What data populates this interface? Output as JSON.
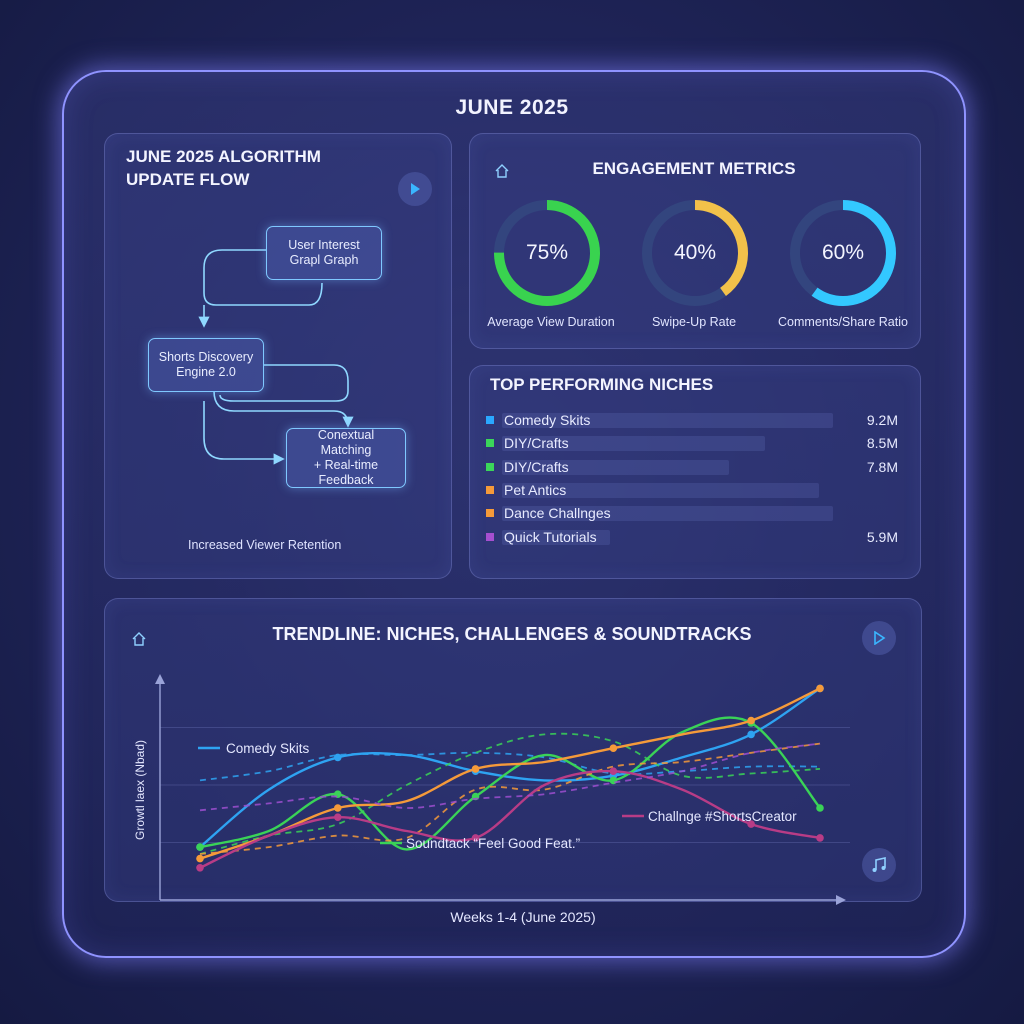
{
  "header": {
    "title": "JUNE 2025"
  },
  "flow_panel": {
    "title_line1": "JUNE 2025 ALGORITHM",
    "title_line2": "UPDATE FLOW",
    "nodes": [
      {
        "line1": "User Interest",
        "line2": "Grapl Graph"
      },
      {
        "line1": "Shorts Discovery",
        "line2": "Engine 2.0"
      },
      {
        "line1": "Conextual Matching",
        "line2": "+ Real-time",
        "line3": "Feedback"
      }
    ],
    "caption": "Increased Viewer Retention",
    "play_icon": "play-icon"
  },
  "engagement_panel": {
    "title": "ENGAGEMENT METRICS",
    "icon": "home-icon",
    "gauges": [
      {
        "value_text": "75%",
        "fraction": 0.75,
        "label": "Average View Duration",
        "color": "#39d34f"
      },
      {
        "value_text": "40%",
        "fraction": 0.4,
        "label": "Swipe-Up Rate",
        "color": "#f2c14a"
      },
      {
        "value_text": "60%",
        "fraction": 0.6,
        "label": "Comments/Share Ratio",
        "color": "#33c8ff"
      }
    ],
    "track_color": "#33457e"
  },
  "niches_panel": {
    "title": "TOP PERFORMING NICHES",
    "items": [
      {
        "name": "Comedy Skits",
        "value": "9.2M",
        "color": "#2aa8ff",
        "bar_fraction": 0.92
      },
      {
        "name": "DIY/Crafts",
        "value": "8.5M",
        "color": "#3bd65a",
        "bar_fraction": 0.73
      },
      {
        "name": "DIY/Crafts",
        "value": "7.8M",
        "color": "#3bd65a",
        "bar_fraction": 0.63
      },
      {
        "name": "Pet Antics",
        "value": "",
        "color": "#f59a3a",
        "bar_fraction": 0.88
      },
      {
        "name": "Dance Challnges",
        "value": "",
        "color": "#f59a3a",
        "bar_fraction": 0.92
      },
      {
        "name": "Quick Tutorials",
        "value": "5.9M",
        "color": "#a64fd0",
        "bar_fraction": 0.3
      }
    ]
  },
  "chart_data": {
    "type": "line",
    "title": "TRENDLINE: NICHES, CHALLENGES & SOUNDTRACKS",
    "xlabel": "Weeks 1-4 (June 2025)",
    "ylabel": "Growtl laex (Nbad)",
    "x": [
      0,
      1,
      2,
      3,
      4,
      5,
      6,
      7,
      8,
      9
    ],
    "ylim": [
      0,
      100
    ],
    "grid": true,
    "series": [
      {
        "name": "Comedy Skits",
        "color": "#2ea3f2",
        "style": "solid",
        "values": [
          23,
          48,
          62,
          63,
          56,
          52,
          54,
          62,
          72,
          92
        ]
      },
      {
        "name": "",
        "color": "#2ea3f2",
        "style": "dashed",
        "values": [
          52,
          56,
          63,
          63,
          64,
          62,
          55,
          56,
          58,
          58
        ]
      },
      {
        "name": "Soundtack “Feel Good Feat.”",
        "color": "#3ad357",
        "style": "solid",
        "values": [
          23,
          30,
          46,
          22,
          45,
          63,
          52,
          73,
          77,
          40
        ]
      },
      {
        "name": "",
        "color": "#3ad357",
        "style": "dashed",
        "values": [
          20,
          28,
          33,
          50,
          64,
          72,
          69,
          54,
          55,
          57
        ]
      },
      {
        "name": "",
        "color": "#f59a3a",
        "style": "solid",
        "values": [
          18,
          28,
          40,
          43,
          57,
          60,
          66,
          72,
          78,
          92
        ]
      },
      {
        "name": "",
        "color": "#f59a3a",
        "style": "dashed",
        "values": [
          20,
          23,
          28,
          27,
          48,
          48,
          58,
          60,
          64,
          68
        ]
      },
      {
        "name": "Challnge #ShortsCreator",
        "color": "#b83c86",
        "style": "solid",
        "values": [
          14,
          28,
          36,
          30,
          27,
          50,
          56,
          48,
          33,
          27
        ]
      },
      {
        "name": "",
        "color": "#9d4fd0",
        "style": "dashed",
        "values": [
          39,
          42,
          45,
          40,
          44,
          46,
          51,
          56,
          64,
          68
        ]
      }
    ],
    "series_labels": {
      "comedy": "Comedy Skits",
      "soundtrack": "Soundtack “Feel Good Feat.”",
      "challenge": "Challnge #ShortsCreator"
    },
    "icons": [
      "home-icon",
      "play-icon",
      "music-note-icon"
    ]
  }
}
